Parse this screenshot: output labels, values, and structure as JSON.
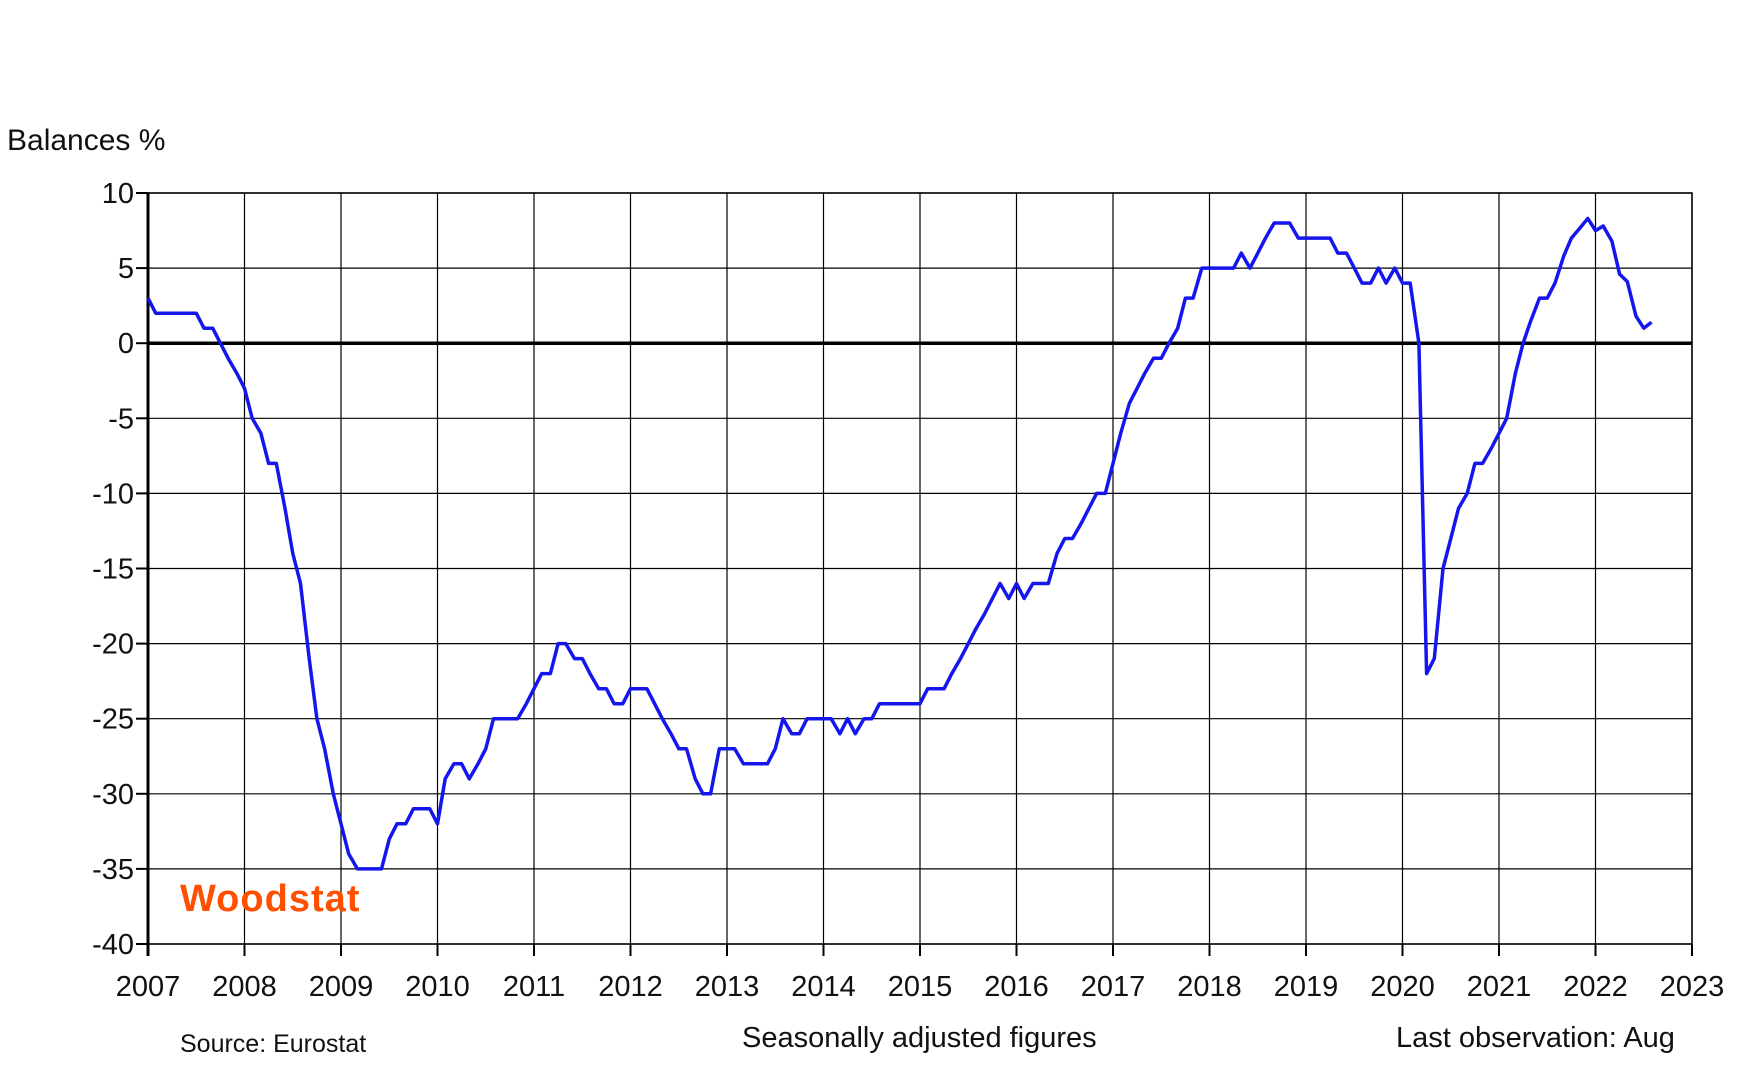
{
  "chart_data": {
    "type": "line",
    "title": "",
    "ylabel": "Balances %",
    "xlabel": "",
    "xlim": [
      2007,
      2023
    ],
    "ylim": [
      -40,
      10
    ],
    "yticks": [
      10,
      5,
      0,
      -5,
      -10,
      -15,
      -20,
      -25,
      -30,
      -35,
      -40
    ],
    "xticks": [
      "2007",
      "2008",
      "2009",
      "2010",
      "2011",
      "2012",
      "2013",
      "2014",
      "2015",
      "2016",
      "2017",
      "2018",
      "2019",
      "2020",
      "2021",
      "2022",
      "2023"
    ],
    "grid": true,
    "line_color": "#1515ee",
    "zero_line_color": "#000000",
    "series": [
      {
        "name": "",
        "x": [
          2007.0,
          2007.08,
          2007.17,
          2007.25,
          2007.33,
          2007.42,
          2007.5,
          2007.58,
          2007.67,
          2007.75,
          2007.83,
          2007.92,
          2008.0,
          2008.08,
          2008.17,
          2008.25,
          2008.33,
          2008.42,
          2008.5,
          2008.58,
          2008.67,
          2008.75,
          2008.83,
          2008.92,
          2009.0,
          2009.08,
          2009.17,
          2009.25,
          2009.33,
          2009.42,
          2009.5,
          2009.58,
          2009.67,
          2009.75,
          2009.83,
          2009.92,
          2010.0,
          2010.08,
          2010.17,
          2010.25,
          2010.33,
          2010.42,
          2010.5,
          2010.58,
          2010.67,
          2010.75,
          2010.83,
          2010.92,
          2011.0,
          2011.08,
          2011.17,
          2011.25,
          2011.33,
          2011.42,
          2011.5,
          2011.58,
          2011.67,
          2011.75,
          2011.83,
          2011.92,
          2012.0,
          2012.08,
          2012.17,
          2012.25,
          2012.33,
          2012.42,
          2012.5,
          2012.58,
          2012.67,
          2012.75,
          2012.83,
          2012.92,
          2013.0,
          2013.08,
          2013.17,
          2013.25,
          2013.33,
          2013.42,
          2013.5,
          2013.58,
          2013.67,
          2013.75,
          2013.83,
          2013.92,
          2014.0,
          2014.08,
          2014.17,
          2014.25,
          2014.33,
          2014.42,
          2014.5,
          2014.58,
          2014.67,
          2014.75,
          2014.83,
          2014.92,
          2015.0,
          2015.08,
          2015.17,
          2015.25,
          2015.33,
          2015.42,
          2015.5,
          2015.58,
          2015.67,
          2015.75,
          2015.83,
          2015.92,
          2016.0,
          2016.08,
          2016.17,
          2016.25,
          2016.33,
          2016.42,
          2016.5,
          2016.58,
          2016.67,
          2016.75,
          2016.83,
          2016.92,
          2017.0,
          2017.08,
          2017.17,
          2017.25,
          2017.33,
          2017.42,
          2017.5,
          2017.58,
          2017.67,
          2017.75,
          2017.83,
          2017.92,
          2018.0,
          2018.08,
          2018.17,
          2018.25,
          2018.33,
          2018.42,
          2018.5,
          2018.58,
          2018.67,
          2018.75,
          2018.83,
          2018.92,
          2019.0,
          2019.08,
          2019.17,
          2019.25,
          2019.33,
          2019.42,
          2019.5,
          2019.58,
          2019.67,
          2019.75,
          2019.83,
          2019.92,
          2020.0,
          2020.08,
          2020.17,
          2020.25,
          2020.33,
          2020.42,
          2020.5,
          2020.58,
          2020.67,
          2020.75,
          2020.83,
          2020.92,
          2021.0,
          2021.08,
          2021.17,
          2021.25,
          2021.33,
          2021.42,
          2021.5,
          2021.58,
          2021.67,
          2021.75,
          2021.83,
          2021.92,
          2022.0,
          2022.08,
          2022.17,
          2022.25,
          2022.33,
          2022.42,
          2022.5,
          2022.58
        ],
        "y": [
          3,
          2,
          2,
          2,
          2,
          2,
          2,
          1,
          1,
          0,
          -1,
          -2,
          -3,
          -5,
          -6,
          -8,
          -8,
          -11,
          -14,
          -16,
          -21,
          -25,
          -27,
          -30,
          -32,
          -34,
          -35,
          -35,
          -35,
          -35,
          -33,
          -32,
          -32,
          -31,
          -31,
          -31,
          -32,
          -29,
          -28,
          -28,
          -29,
          -28,
          -27,
          -25,
          -25,
          -25,
          -25,
          -24,
          -23,
          -22,
          -22,
          -20,
          -20,
          -21,
          -21,
          -22,
          -23,
          -23,
          -24,
          -24,
          -23,
          -23,
          -23,
          -24,
          -25,
          -26,
          -27,
          -27,
          -29,
          -30,
          -30,
          -27,
          -27,
          -27,
          -28,
          -28,
          -28,
          -28,
          -27,
          -25,
          -26,
          -26,
          -25,
          -25,
          -25,
          -25,
          -26,
          -25,
          -26,
          -25,
          -25,
          -24,
          -24,
          -24,
          -24,
          -24,
          -24,
          -23,
          -23,
          -23,
          -22,
          -21,
          -20,
          -19,
          -18,
          -17,
          -16,
          -17,
          -16,
          -17,
          -16,
          -16,
          -16,
          -14,
          -13,
          -13,
          -12,
          -11,
          -10,
          -10,
          -8,
          -6,
          -4,
          -3,
          -2,
          -1,
          -1,
          0,
          1,
          3,
          3,
          5,
          5,
          5,
          5,
          5,
          6,
          5,
          6,
          7,
          8,
          8,
          8,
          7,
          7,
          7,
          7,
          7,
          6,
          6,
          5,
          4,
          4,
          5,
          4,
          5,
          4,
          4,
          0,
          -22,
          -21,
          -15,
          -13,
          -11,
          -10,
          -8,
          -8,
          -7,
          -6,
          -5,
          -2,
          0,
          1.5,
          3,
          3,
          4,
          5.8,
          7,
          7.6,
          8.3,
          7.5,
          7.8,
          6.8,
          4.6,
          4.1,
          1.8,
          1.0,
          1.4
        ]
      }
    ],
    "annotations": {
      "source": "Source: Eurostat",
      "adjusted": "Seasonally adjusted figures",
      "last_observation": "Last observation: Aug"
    },
    "logo_text": "Woodstat"
  }
}
